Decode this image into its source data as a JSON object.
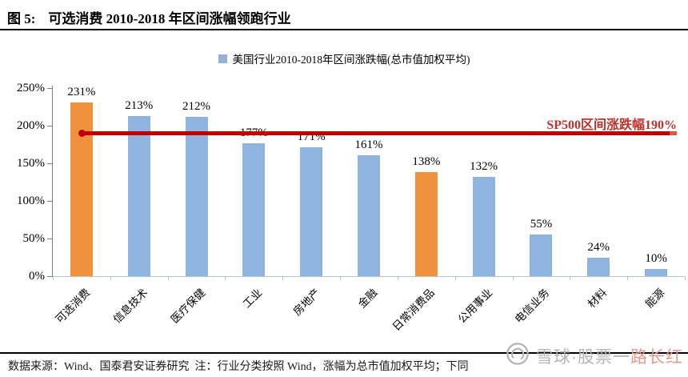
{
  "figure": {
    "label": "图 5:",
    "title": "可选消费 2010-2018 年区间涨幅领跑行业"
  },
  "legend": {
    "label": "美国行业2010-2018年区间涨跌幅(总市值加权平均)",
    "swatch_color": "#95b3d7"
  },
  "chart_data": {
    "type": "bar",
    "title": "美国行业2010-2018年区间涨跌幅(总市值加权平均)",
    "categories": [
      "可选消费",
      "信息技术",
      "医疗保健",
      "工业",
      "房地产",
      "金融",
      "日常消费品",
      "公用事业",
      "电信业务",
      "材料",
      "能源"
    ],
    "values": [
      231,
      213,
      212,
      177,
      171,
      161,
      138,
      132,
      55,
      24,
      10
    ],
    "value_labels": [
      "231%",
      "213%",
      "212%",
      "177%",
      "171%",
      "161%",
      "138%",
      "132%",
      "55%",
      "24%",
      "10%"
    ],
    "bar_colors": [
      "#F0923C",
      "#8FB4E0",
      "#8FB4E0",
      "#8FB4E0",
      "#8FB4E0",
      "#8FB4E0",
      "#F0923C",
      "#8FB4E0",
      "#8FB4E0",
      "#8FB4E0",
      "#8FB4E0"
    ],
    "highlight_color": "#F0923C",
    "default_color": "#8FB4E0",
    "ylim": [
      0,
      250
    ],
    "y_tick_values": [
      250,
      200,
      150,
      100,
      50,
      0
    ],
    "y_tick_labels": [
      "250%",
      "200%",
      "150%",
      "100%",
      "50%",
      "0%"
    ],
    "grid": "off",
    "legend_position": "top-center",
    "reference_line": {
      "value": 190,
      "label": "SP500区间涨跌幅190%",
      "color": "#C00000"
    }
  },
  "footer": {
    "source_note": "数据来源：Wind、国泰君安证券研究  注：行业分类按照 Wind，涨幅为总市值加权平均；下同"
  },
  "watermark": {
    "text_gray": "雪球·股票一",
    "text_red": "路长红"
  }
}
